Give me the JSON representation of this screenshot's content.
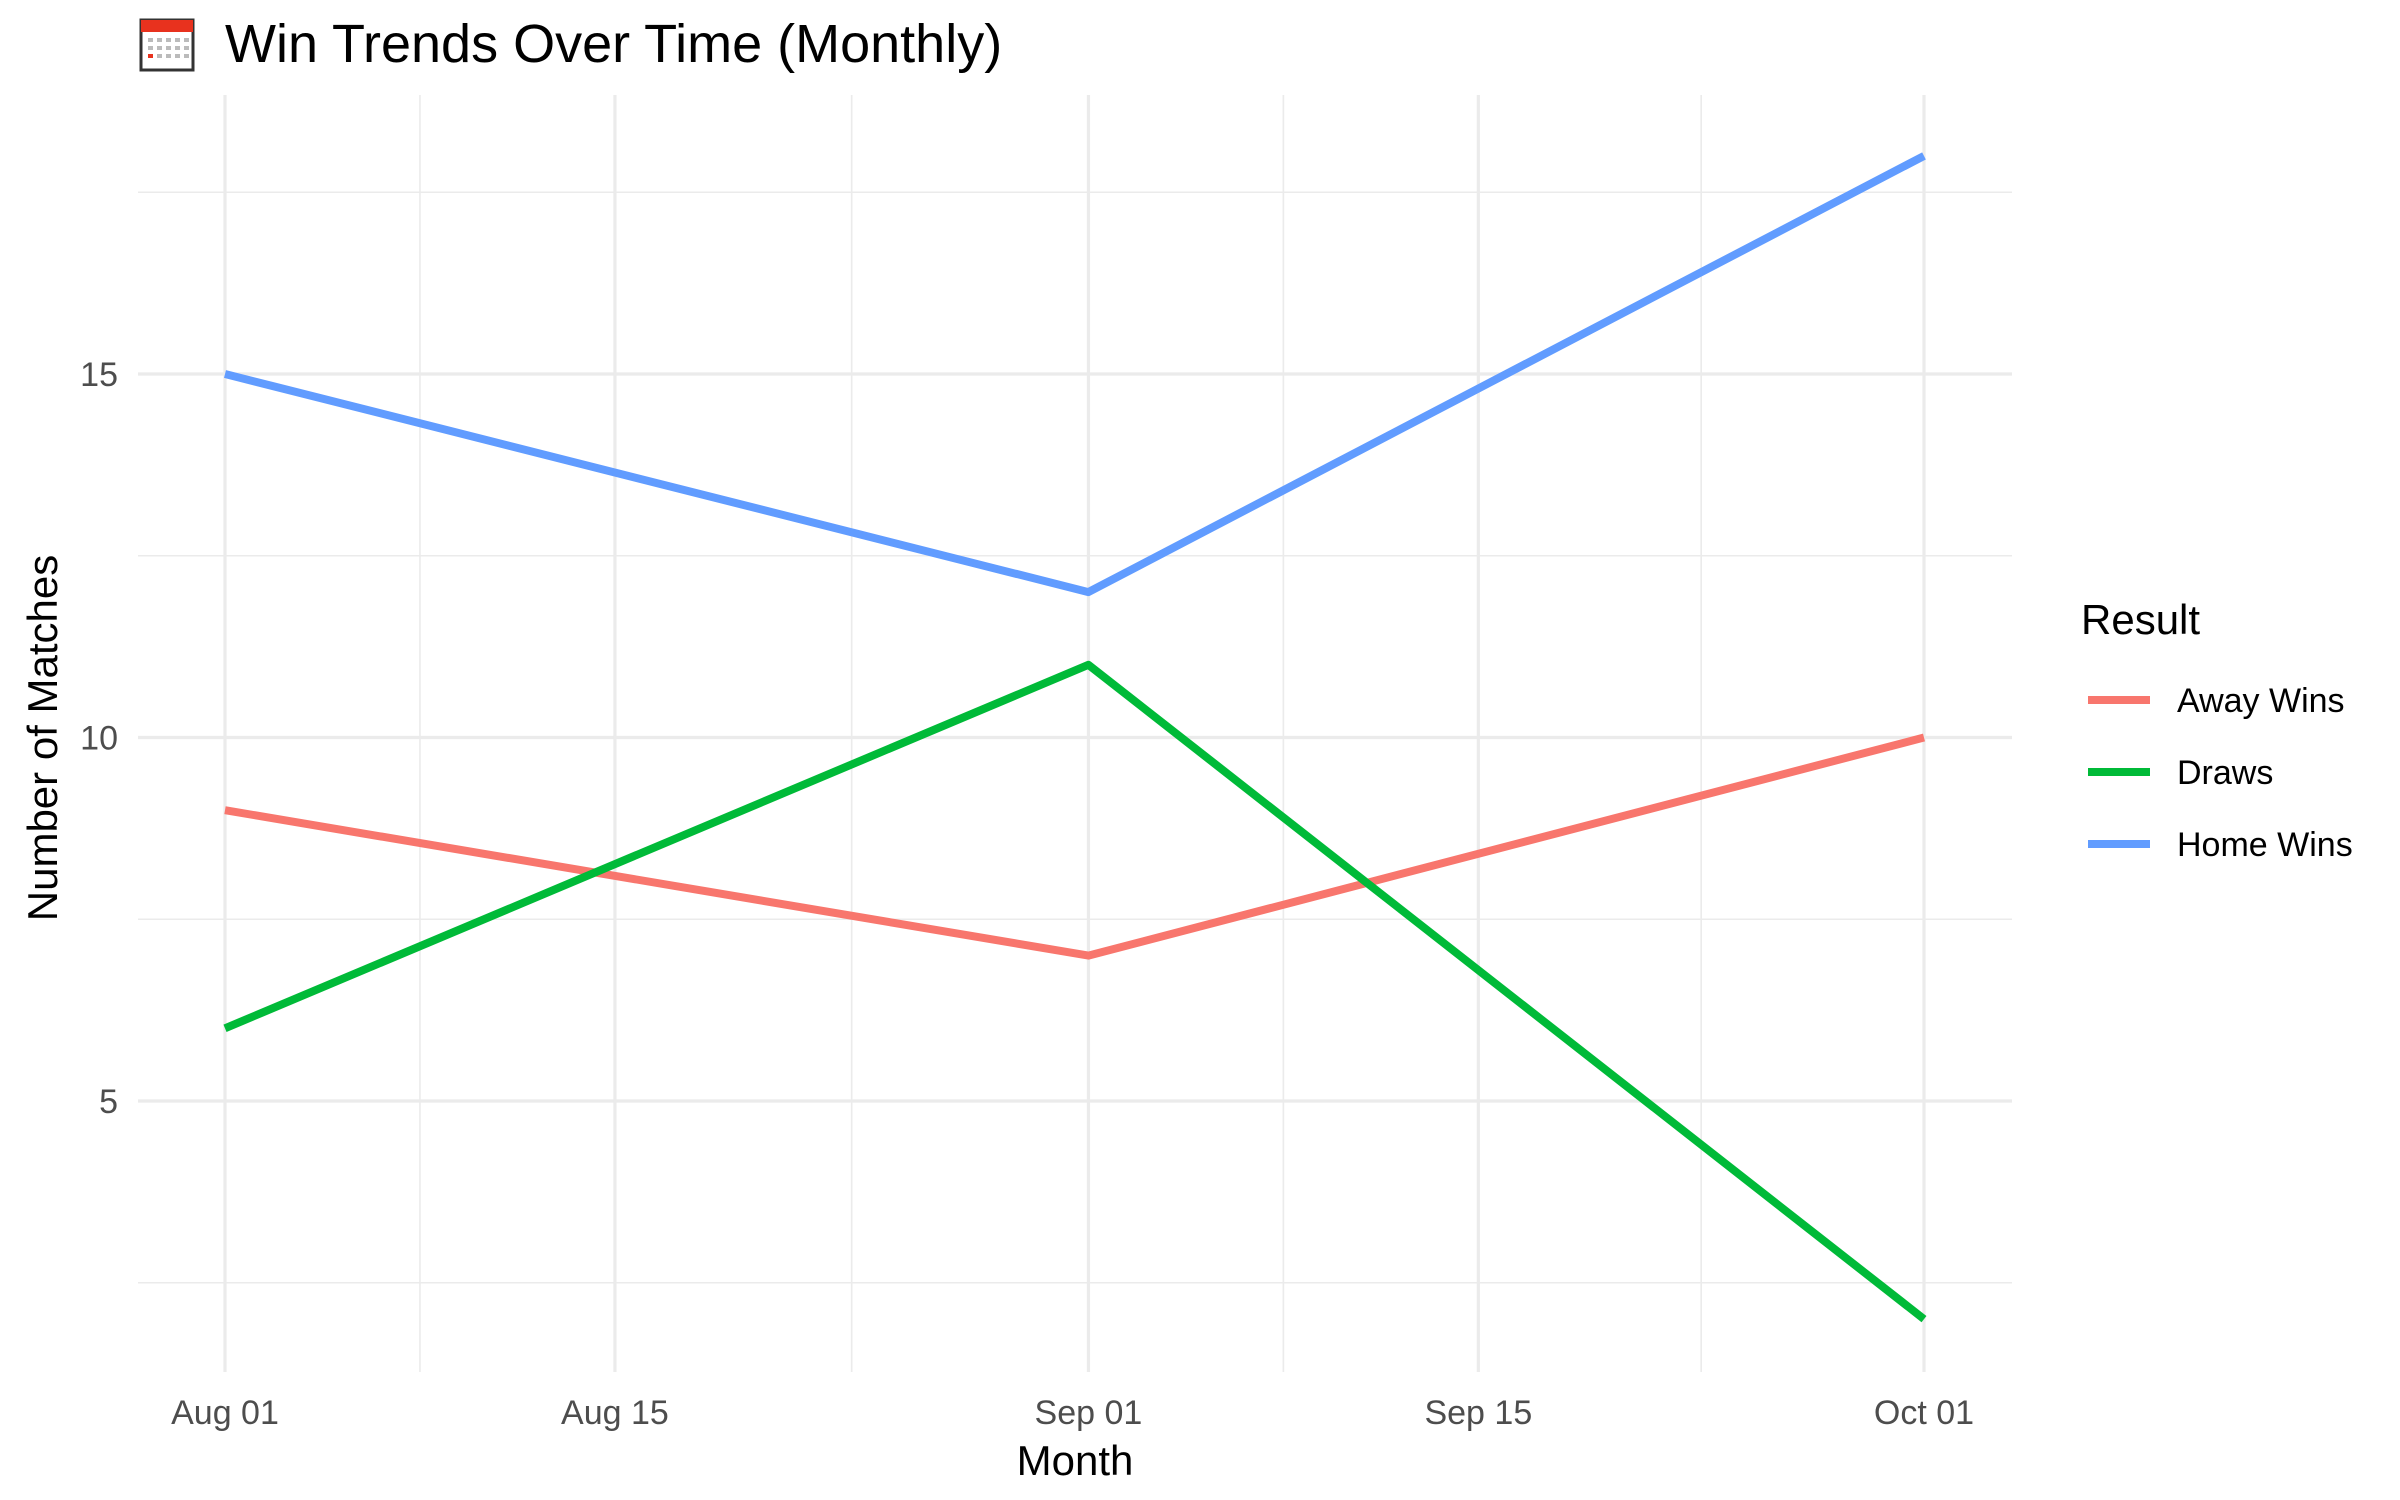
{
  "chart_data": {
    "type": "line",
    "title": "Win Trends Over Time (Monthly)",
    "title_icon": "calendar-icon",
    "xlabel": "Month",
    "ylabel": "Number of Matches",
    "x": [
      "2024-08-01",
      "2024-09-01",
      "2024-10-01"
    ],
    "x_ticks": [
      {
        "date": "2024-08-01",
        "label": "Aug 01"
      },
      {
        "date": "2024-08-15",
        "label": "Aug 15"
      },
      {
        "date": "2024-09-01",
        "label": "Sep 01"
      },
      {
        "date": "2024-09-15",
        "label": "Sep 15"
      },
      {
        "date": "2024-10-01",
        "label": "Oct 01"
      }
    ],
    "y_ticks": [
      5,
      10,
      15
    ],
    "ylim": [
      1.5,
      19.3
    ],
    "grid": true,
    "legend_title": "Result",
    "legend_position": "right",
    "series": [
      {
        "name": "Away Wins",
        "color": "#F8766D",
        "values": [
          9,
          7,
          10
        ]
      },
      {
        "name": "Draws",
        "color": "#00BA38",
        "values": [
          6,
          11,
          2
        ]
      },
      {
        "name": "Home Wins",
        "color": "#619CFF",
        "values": [
          15,
          12,
          18
        ]
      }
    ]
  }
}
